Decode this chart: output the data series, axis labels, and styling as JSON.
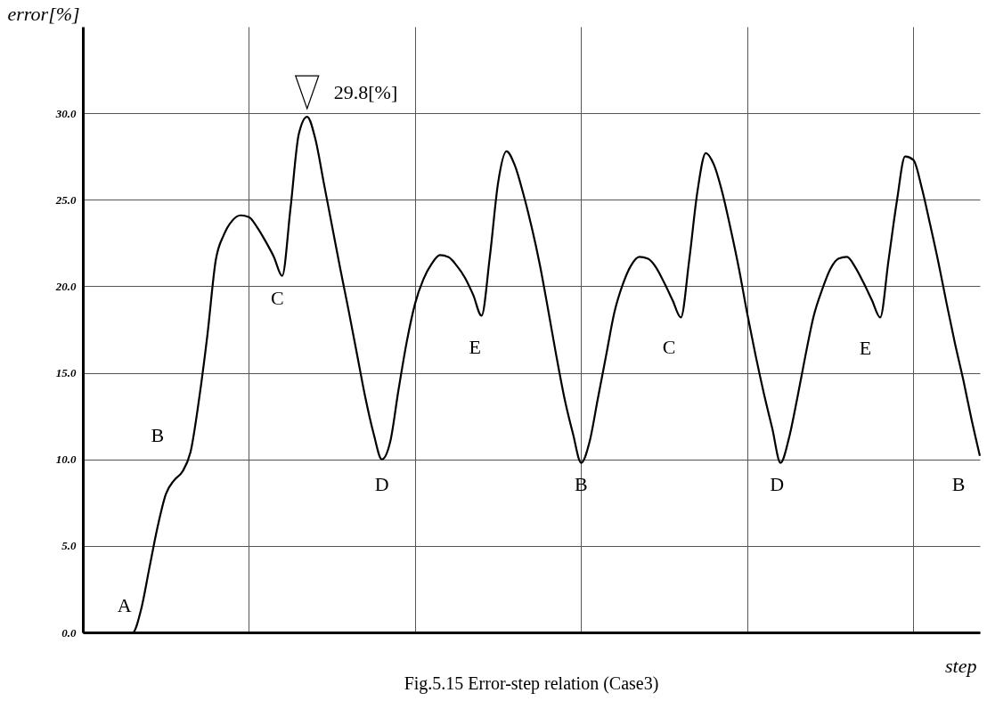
{
  "chart_data": {
    "type": "line",
    "xlabel": "step",
    "ylabel": "error[%]",
    "categories": [
      null,
      null,
      null,
      null,
      null,
      null,
      null,
      null,
      null,
      null,
      null,
      null,
      null,
      null,
      null,
      null,
      null,
      null,
      null,
      null,
      null,
      null,
      null,
      null,
      null,
      null,
      null,
      null,
      null,
      null,
      null,
      null,
      null,
      null,
      null,
      null,
      null,
      null,
      null,
      null,
      null,
      null,
      null,
      null,
      null,
      null,
      null,
      null,
      null,
      null,
      null,
      null,
      null,
      null,
      null,
      null,
      null,
      null,
      null,
      null,
      null,
      null,
      null,
      null,
      null,
      null,
      null,
      null,
      null,
      null,
      null,
      null,
      null,
      null,
      null,
      null,
      null,
      null,
      null,
      null,
      null,
      null,
      null,
      null,
      null,
      null,
      null,
      null,
      null,
      null,
      null,
      null,
      null,
      null,
      null,
      null,
      null,
      null,
      null,
      null,
      null,
      null,
      null,
      null,
      null,
      null,
      null,
      null,
      null
    ],
    "series": [
      {
        "color": "#000000",
        "values": [
          0,
          0,
          0,
          0,
          0,
          0,
          0,
          1.3,
          3.7,
          6.1,
          8.0,
          8.8,
          9.3,
          10.5,
          13.5,
          17.2,
          21.5,
          23.0,
          23.8,
          24.1,
          24.0,
          23.4,
          22.6,
          21.7,
          20.6,
          24.5,
          28.8,
          29.8,
          28.5,
          26.0,
          23.5,
          21.0,
          18.6,
          16.1,
          13.6,
          11.5,
          10.0,
          11.0,
          14.0,
          16.8,
          19.0,
          20.4,
          21.3,
          21.8,
          21.7,
          21.2,
          20.5,
          19.5,
          18.3,
          21.7,
          26.0,
          27.8,
          27.0,
          25.4,
          23.5,
          21.3,
          18.7,
          16.0,
          13.5,
          11.5,
          9.8,
          11.0,
          13.5,
          16.0,
          18.5,
          20.1,
          21.2,
          21.7,
          21.6,
          21.1,
          20.2,
          19.2,
          18.2,
          21.5,
          25.5,
          27.7,
          27.0,
          25.4,
          23.3,
          21.0,
          18.4,
          16.0,
          13.8,
          11.8,
          9.8,
          11.2,
          13.5,
          16.0,
          18.3,
          19.8,
          21.0,
          21.6,
          21.7,
          21.1,
          20.2,
          19.2,
          18.2,
          21.5,
          24.9,
          27.5,
          27.3,
          25.7,
          23.6,
          21.4,
          19.0,
          16.7,
          14.6,
          12.3,
          10.2
        ]
      }
    ],
    "ylim": [
      0,
      35
    ],
    "yticks": [
      {
        "value": 0,
        "label": "0.0"
      },
      {
        "value": 5,
        "label": "5.0"
      },
      {
        "value": 10,
        "label": "10.0"
      },
      {
        "value": 15,
        "label": "15.0"
      },
      {
        "value": 20,
        "label": "20.0"
      },
      {
        "value": 25,
        "label": "25.0"
      },
      {
        "value": 30,
        "label": "30.0"
      }
    ],
    "tick_labels": "y",
    "grid": true,
    "marker": "none",
    "line_style": "solid",
    "annotations": [
      "29.8[%]",
      "A",
      "B",
      "C",
      "D",
      "E",
      "B",
      "C",
      "D",
      "E",
      "B",
      "Fig.5.15 Error-step relation (Case3)"
    ]
  }
}
